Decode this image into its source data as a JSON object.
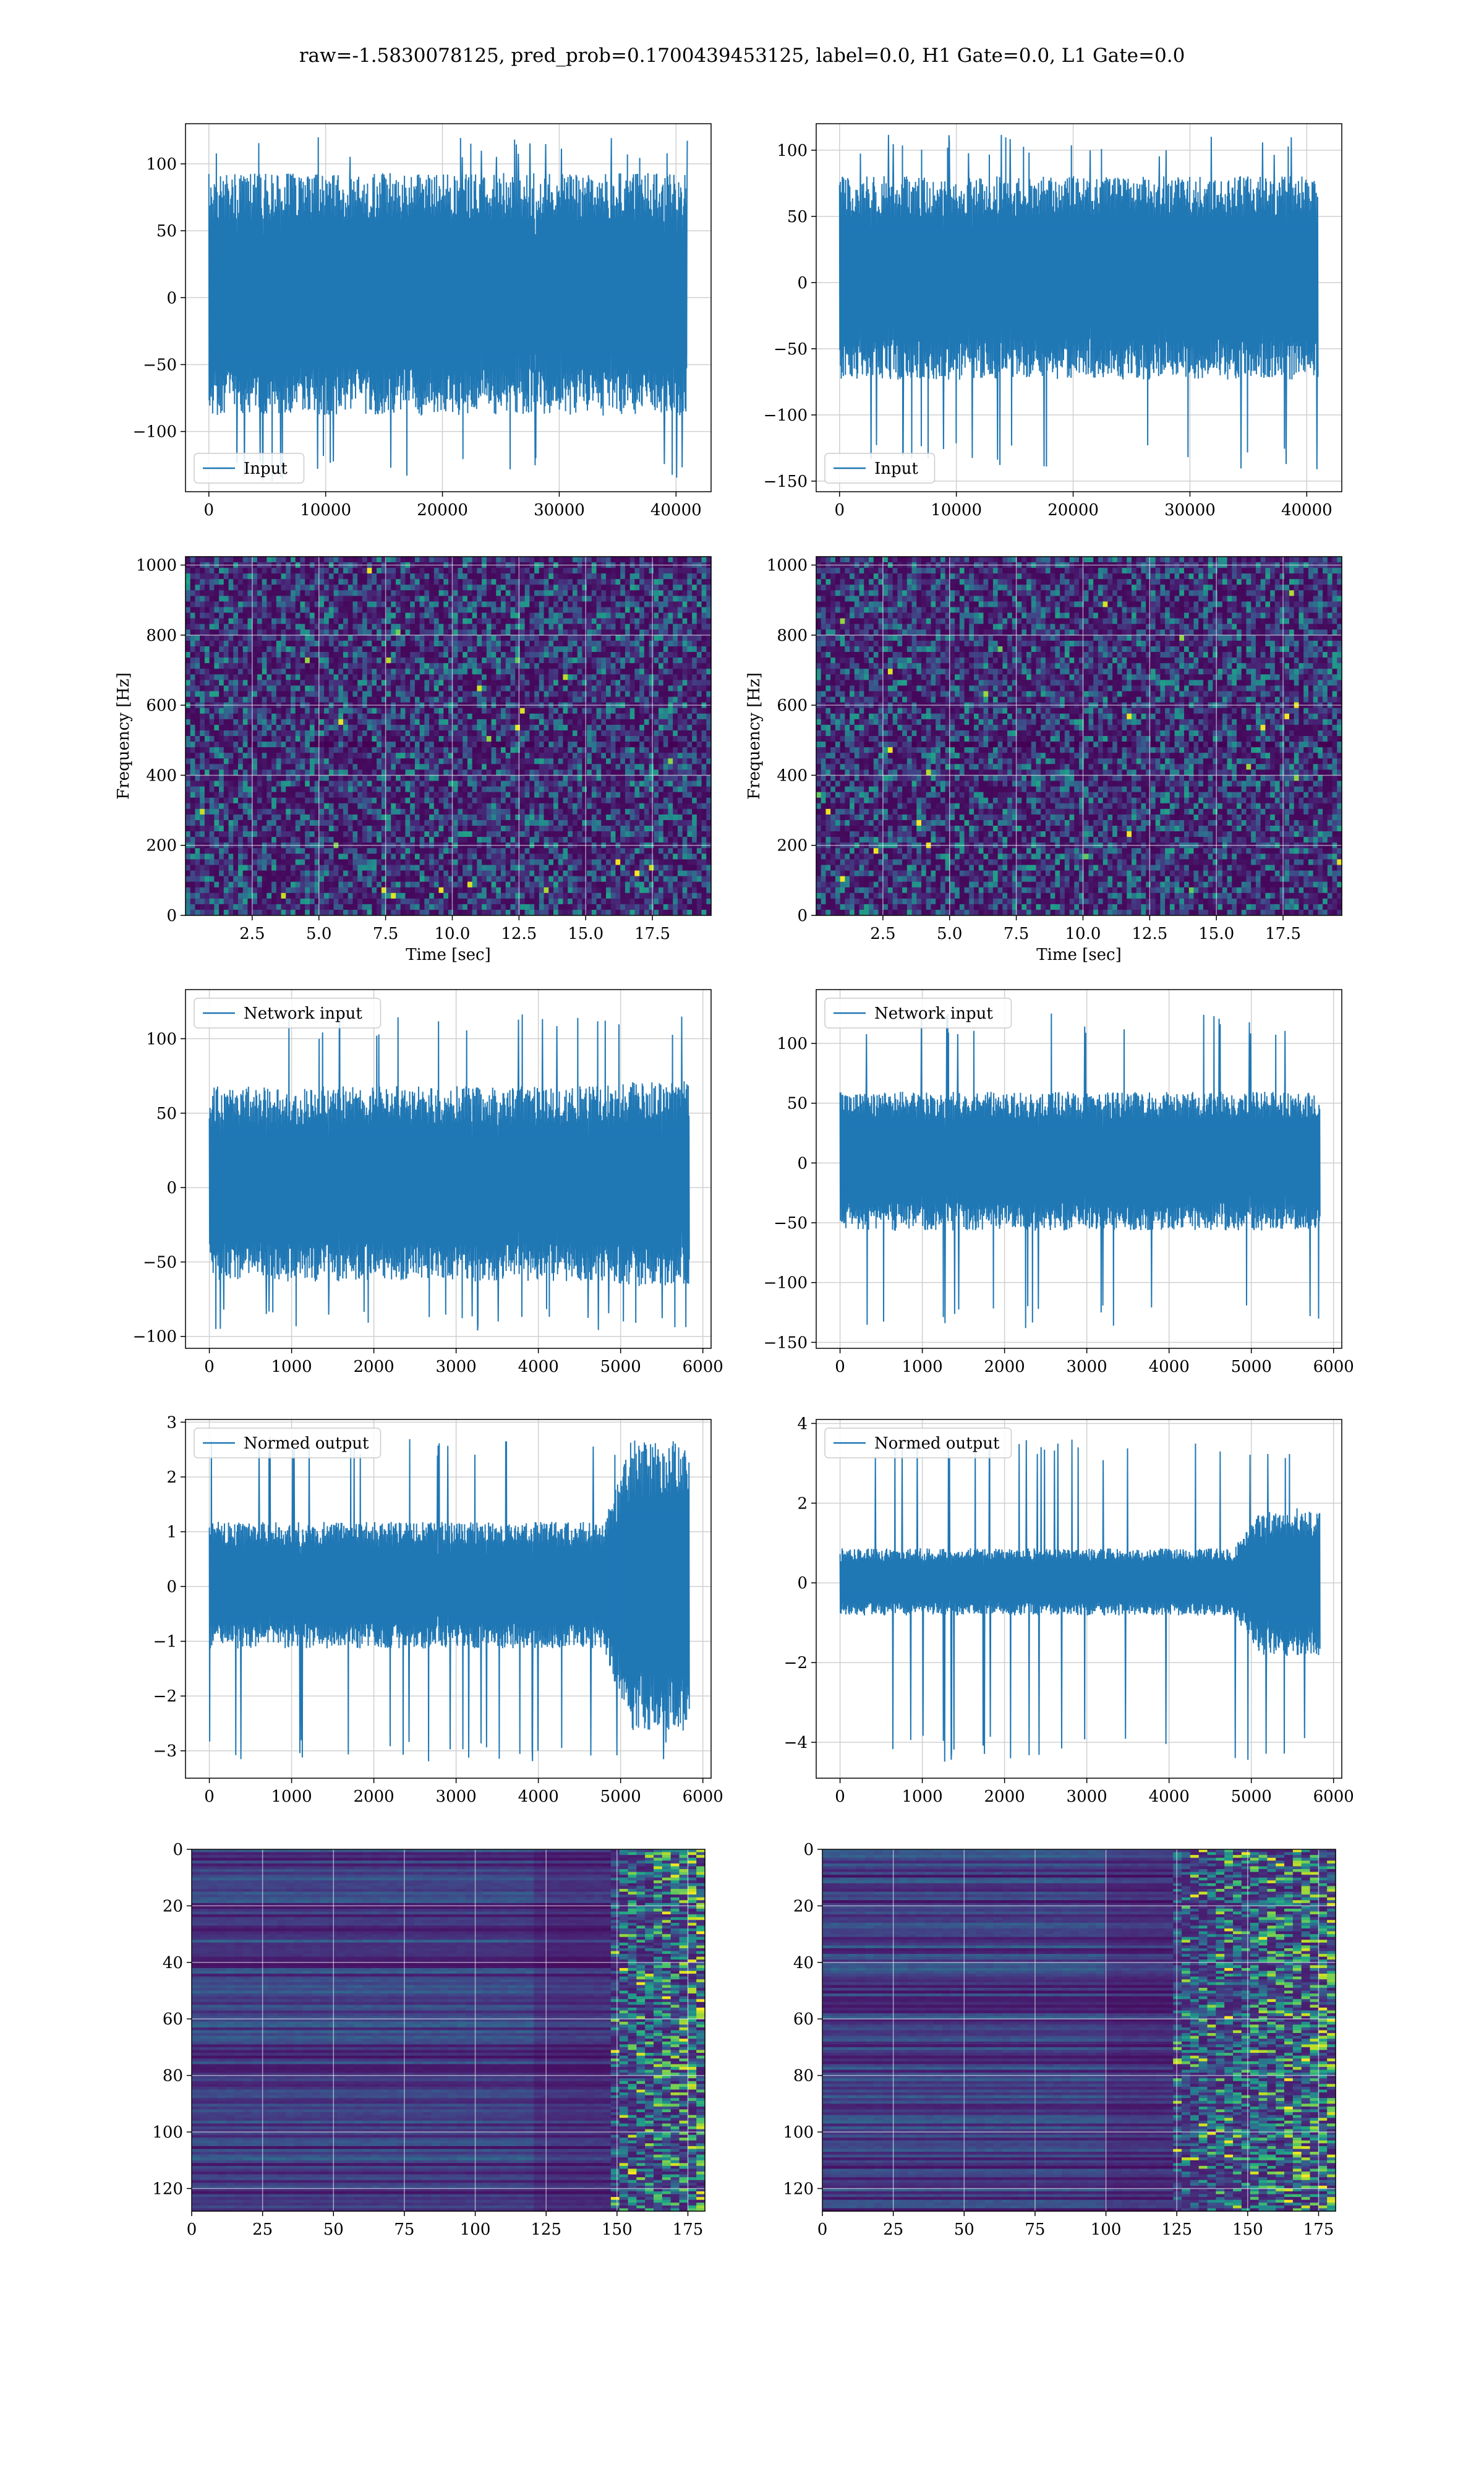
{
  "figure": {
    "suptitle": "raw=-1.5830078125, pred_prob=0.1700439453125, label=0.0, H1 Gate=0.0, L1 Gate=0.0"
  },
  "colors": {
    "line": "#1f77b4",
    "grid": "#d0d0d0",
    "viridis": [
      "#440154",
      "#482475",
      "#414487",
      "#355f8d",
      "#2a788e",
      "#21918c",
      "#22a884",
      "#44bf70",
      "#7ad151",
      "#bddf26",
      "#fde725"
    ]
  },
  "chart_data": [
    {
      "type": "line",
      "panel": "row1-left",
      "legend": "Input",
      "legend_loc": "lower-left",
      "xlim": [
        -2000,
        43000
      ],
      "ylim": [
        -145,
        130
      ],
      "xticks": [
        0,
        10000,
        20000,
        30000,
        40000
      ],
      "yticks": [
        -100,
        -50,
        0,
        50,
        100
      ],
      "signal": {
        "length": 40960,
        "band": [
          -70,
          75
        ],
        "peak_max": 121,
        "peak_min": -138,
        "tail_growth": 0
      }
    },
    {
      "type": "line",
      "panel": "row1-right",
      "legend": "Input",
      "legend_loc": "lower-left",
      "xlim": [
        -2000,
        43000
      ],
      "ylim": [
        -158,
        120
      ],
      "xticks": [
        0,
        10000,
        20000,
        30000,
        40000
      ],
      "yticks": [
        -150,
        -100,
        -50,
        0,
        50,
        100
      ],
      "signal": {
        "length": 40960,
        "band": [
          -58,
          65
        ],
        "peak_max": 112,
        "peak_min": -141,
        "tail_growth": 0
      }
    },
    {
      "type": "heatmap",
      "panel": "row2-left",
      "xlabel": "Time [sec]",
      "ylabel": "Frequency [Hz]",
      "xlim": [
        0,
        19.7
      ],
      "ylim": [
        0,
        1024
      ],
      "xticks": [
        2.5,
        5.0,
        7.5,
        10.0,
        12.5,
        15.0,
        17.5
      ],
      "yticks": [
        0,
        200,
        400,
        600,
        800,
        1000
      ],
      "grid": true
    },
    {
      "type": "heatmap",
      "panel": "row2-right",
      "xlabel": "Time [sec]",
      "ylabel": "Frequency [Hz]",
      "xlim": [
        0,
        19.7
      ],
      "ylim": [
        0,
        1024
      ],
      "xticks": [
        2.5,
        5.0,
        7.5,
        10.0,
        12.5,
        15.0,
        17.5
      ],
      "yticks": [
        0,
        200,
        400,
        600,
        800,
        1000
      ],
      "grid": true
    },
    {
      "type": "line",
      "panel": "row3-left",
      "legend": "Network input",
      "legend_loc": "upper-left",
      "xlim": [
        -290,
        6100
      ],
      "ylim": [
        -108,
        133
      ],
      "xticks": [
        0,
        1000,
        2000,
        3000,
        4000,
        5000,
        6000
      ],
      "yticks": [
        -100,
        -50,
        0,
        50,
        100
      ],
      "signal": {
        "length": 5835,
        "band": [
          -50,
          55
        ],
        "peak_max": 117,
        "peak_min": -96,
        "tail_growth": 0.05
      }
    },
    {
      "type": "line",
      "panel": "row3-right",
      "legend": "Network input",
      "legend_loc": "upper-left",
      "xlim": [
        -290,
        6100
      ],
      "ylim": [
        -155,
        145
      ],
      "xticks": [
        0,
        1000,
        2000,
        3000,
        4000,
        5000,
        6000
      ],
      "yticks": [
        -150,
        -100,
        -50,
        0,
        50,
        100
      ],
      "signal": {
        "length": 5835,
        "band": [
          -45,
          48
        ],
        "peak_max": 126,
        "peak_min": -140,
        "tail_growth": 0
      }
    },
    {
      "type": "line",
      "panel": "row4-left",
      "legend": "Normed output",
      "legend_loc": "upper-left",
      "xlim": [
        -290,
        6100
      ],
      "ylim": [
        -3.5,
        3.05
      ],
      "xticks": [
        0,
        1000,
        2000,
        3000,
        4000,
        5000,
        6000
      ],
      "yticks": [
        -3,
        -2,
        -1,
        0,
        1,
        2,
        3
      ],
      "signal": {
        "length": 5835,
        "band": [
          -0.9,
          0.95
        ],
        "peak_max": 2.8,
        "peak_min": -3.2,
        "tail_growth": 1.3
      }
    },
    {
      "type": "line",
      "panel": "row4-right",
      "legend": "Normed output",
      "legend_loc": "upper-left",
      "xlim": [
        -290,
        6100
      ],
      "ylim": [
        -4.9,
        4.1
      ],
      "xticks": [
        0,
        1000,
        2000,
        3000,
        4000,
        5000,
        6000
      ],
      "yticks": [
        -4,
        -2,
        0,
        2,
        4
      ],
      "signal": {
        "length": 5835,
        "band": [
          -0.65,
          0.7
        ],
        "peak_max": 3.6,
        "peak_min": -4.5,
        "tail_growth": 1.2
      }
    },
    {
      "type": "heatmap",
      "panel": "row5-left",
      "xlim": [
        0,
        181
      ],
      "ylim": [
        128,
        0
      ],
      "xticks": [
        0,
        25,
        50,
        75,
        100,
        125,
        150,
        175
      ],
      "yticks": [
        0,
        20,
        40,
        60,
        80,
        100,
        120
      ],
      "grid": true,
      "activation_onset": 147
    },
    {
      "type": "heatmap",
      "panel": "row5-right",
      "xlim": [
        0,
        181
      ],
      "ylim": [
        128,
        0
      ],
      "xticks": [
        0,
        25,
        50,
        75,
        100,
        125,
        150,
        175
      ],
      "yticks": [
        0,
        20,
        40,
        60,
        80,
        100,
        120
      ],
      "grid": true,
      "activation_onset": 125
    }
  ]
}
